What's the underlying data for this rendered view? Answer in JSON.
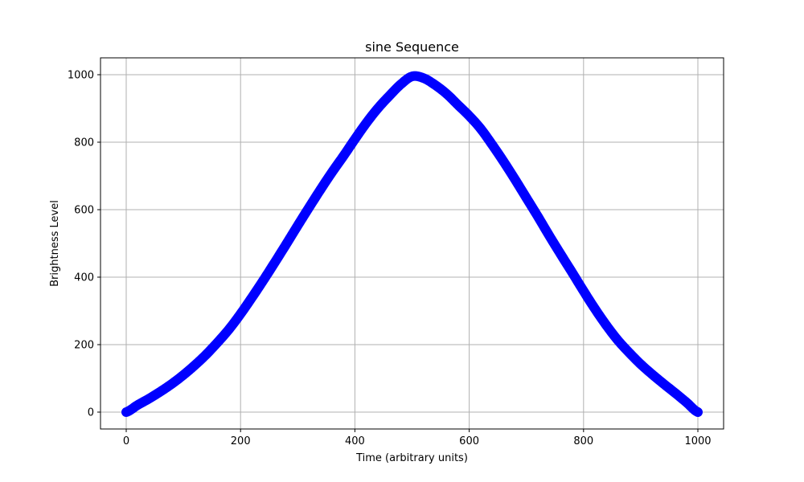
{
  "chart_data": {
    "type": "line",
    "title": "sine Sequence",
    "xlabel": "Time (arbitrary units)",
    "ylabel": "Brightness Level",
    "xlim": [
      -45,
      1045
    ],
    "ylim": [
      -50,
      1050
    ],
    "xticks": [
      0,
      200,
      400,
      600,
      800,
      1000
    ],
    "yticks": [
      0,
      200,
      400,
      600,
      800,
      1000
    ],
    "grid": true,
    "marker": "circle",
    "series": [
      {
        "color": "#0000ff",
        "x": [
          0,
          20,
          40,
          60,
          80,
          100,
          120,
          140,
          160,
          180,
          200,
          220,
          240,
          260,
          280,
          300,
          320,
          340,
          360,
          380,
          400,
          420,
          440,
          460,
          480,
          500,
          520,
          540,
          560,
          580,
          600,
          620,
          640,
          660,
          680,
          700,
          720,
          740,
          760,
          780,
          800,
          820,
          840,
          860,
          880,
          900,
          920,
          940,
          960,
          980,
          1000
        ],
        "y": [
          0,
          21,
          40,
          61,
          84,
          110,
          139,
          171,
          207,
          246,
          291,
          340,
          391,
          444,
          498,
          553,
          607,
          660,
          711,
          759,
          809,
          857,
          900,
          937,
          971,
          995,
          990,
          970,
          944,
          911,
          878,
          840,
          793,
          743,
          690,
          635,
          580,
          523,
          468,
          414,
          359,
          306,
          257,
          213,
          176,
          142,
          112,
          84,
          57,
          29,
          0
        ]
      }
    ]
  }
}
